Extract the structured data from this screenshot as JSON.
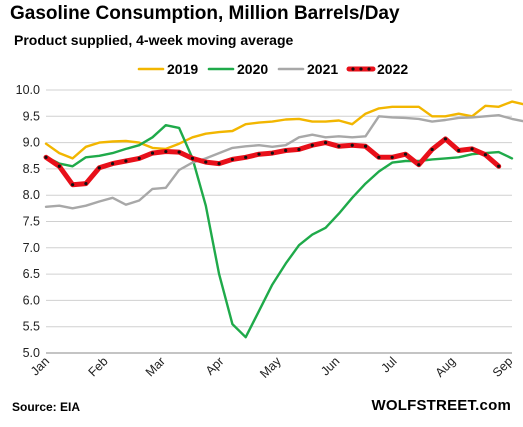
{
  "header": {
    "title": "Gasoline Consumption, Million Barrels/Day",
    "subtitle": "Product supplied, 4-week moving average"
  },
  "footer": {
    "source": "Source: EIA",
    "brand": "WOLFSTREET.com"
  },
  "chart_data": {
    "type": "line",
    "title": "Gasoline Consumption, Million Barrels/Day",
    "subtitle": "Product supplied, 4-week moving average",
    "xlabel": "",
    "ylabel": "",
    "ylim": [
      5.0,
      10.0
    ],
    "xlim": [
      1,
      36
    ],
    "y_ticks": [
      "5.0",
      "5.5",
      "6.0",
      "6.5",
      "7.0",
      "7.5",
      "8.0",
      "8.5",
      "9.0",
      "9.5",
      "10.0"
    ],
    "x_ticks": [
      {
        "label": "Jan",
        "week": 1
      },
      {
        "label": "Feb",
        "week": 5.4
      },
      {
        "label": "Mar",
        "week": 9.7
      },
      {
        "label": "Apr",
        "week": 14.1
      },
      {
        "label": "May",
        "week": 18.4
      },
      {
        "label": "Jun",
        "week": 22.8
      },
      {
        "label": "Jul",
        "week": 27.1
      },
      {
        "label": "Aug",
        "week": 31.5
      },
      {
        "label": "Sep",
        "week": 35.8
      }
    ],
    "grid": {
      "horizontal": true,
      "vertical": false
    },
    "legend_position": "top",
    "series": [
      {
        "name": "2019",
        "color": "#f2b600",
        "week_start": 1,
        "values": [
          8.98,
          8.8,
          8.7,
          8.92,
          9.0,
          9.02,
          9.03,
          9.0,
          8.9,
          8.88,
          8.98,
          9.1,
          9.17,
          9.2,
          9.22,
          9.35,
          9.38,
          9.4,
          9.44,
          9.45,
          9.4,
          9.4,
          9.42,
          9.35,
          9.55,
          9.65,
          9.68,
          9.68,
          9.68,
          9.5,
          9.5,
          9.55,
          9.5,
          9.7,
          9.68,
          9.78,
          9.72,
          9.7
        ]
      },
      {
        "name": "2020",
        "color": "#1faa4a",
        "week_start": 1,
        "values": [
          8.73,
          8.6,
          8.55,
          8.72,
          8.75,
          8.8,
          8.88,
          8.95,
          9.1,
          9.33,
          9.28,
          8.7,
          7.8,
          6.5,
          5.55,
          5.3,
          5.8,
          6.3,
          6.7,
          7.05,
          7.25,
          7.38,
          7.65,
          7.95,
          8.22,
          8.45,
          8.62,
          8.65,
          8.65,
          8.68,
          8.7,
          8.72,
          8.78,
          8.8,
          8.82,
          8.7
        ]
      },
      {
        "name": "2021",
        "color": "#a8a8a8",
        "week_start": 1,
        "values": [
          7.78,
          7.8,
          7.75,
          7.8,
          7.88,
          7.95,
          7.82,
          7.9,
          8.12,
          8.14,
          8.48,
          8.62,
          8.7,
          8.8,
          8.9,
          8.93,
          8.95,
          8.92,
          8.95,
          9.1,
          9.15,
          9.1,
          9.12,
          9.1,
          9.12,
          9.5,
          9.48,
          9.47,
          9.45,
          9.4,
          9.43,
          9.47,
          9.48,
          9.5,
          9.52,
          9.45,
          9.4
        ]
      },
      {
        "name": "2022",
        "color": "#e8101a",
        "marker_color": "#111111",
        "week_start": 1,
        "values": [
          8.72,
          8.55,
          8.2,
          8.22,
          8.52,
          8.6,
          8.65,
          8.7,
          8.8,
          8.83,
          8.82,
          8.7,
          8.63,
          8.6,
          8.68,
          8.72,
          8.78,
          8.8,
          8.85,
          8.87,
          8.95,
          9.0,
          8.93,
          8.95,
          8.93,
          8.72,
          8.72,
          8.78,
          8.58,
          8.87,
          9.07,
          8.85,
          8.88,
          8.77,
          8.55
        ]
      }
    ]
  }
}
